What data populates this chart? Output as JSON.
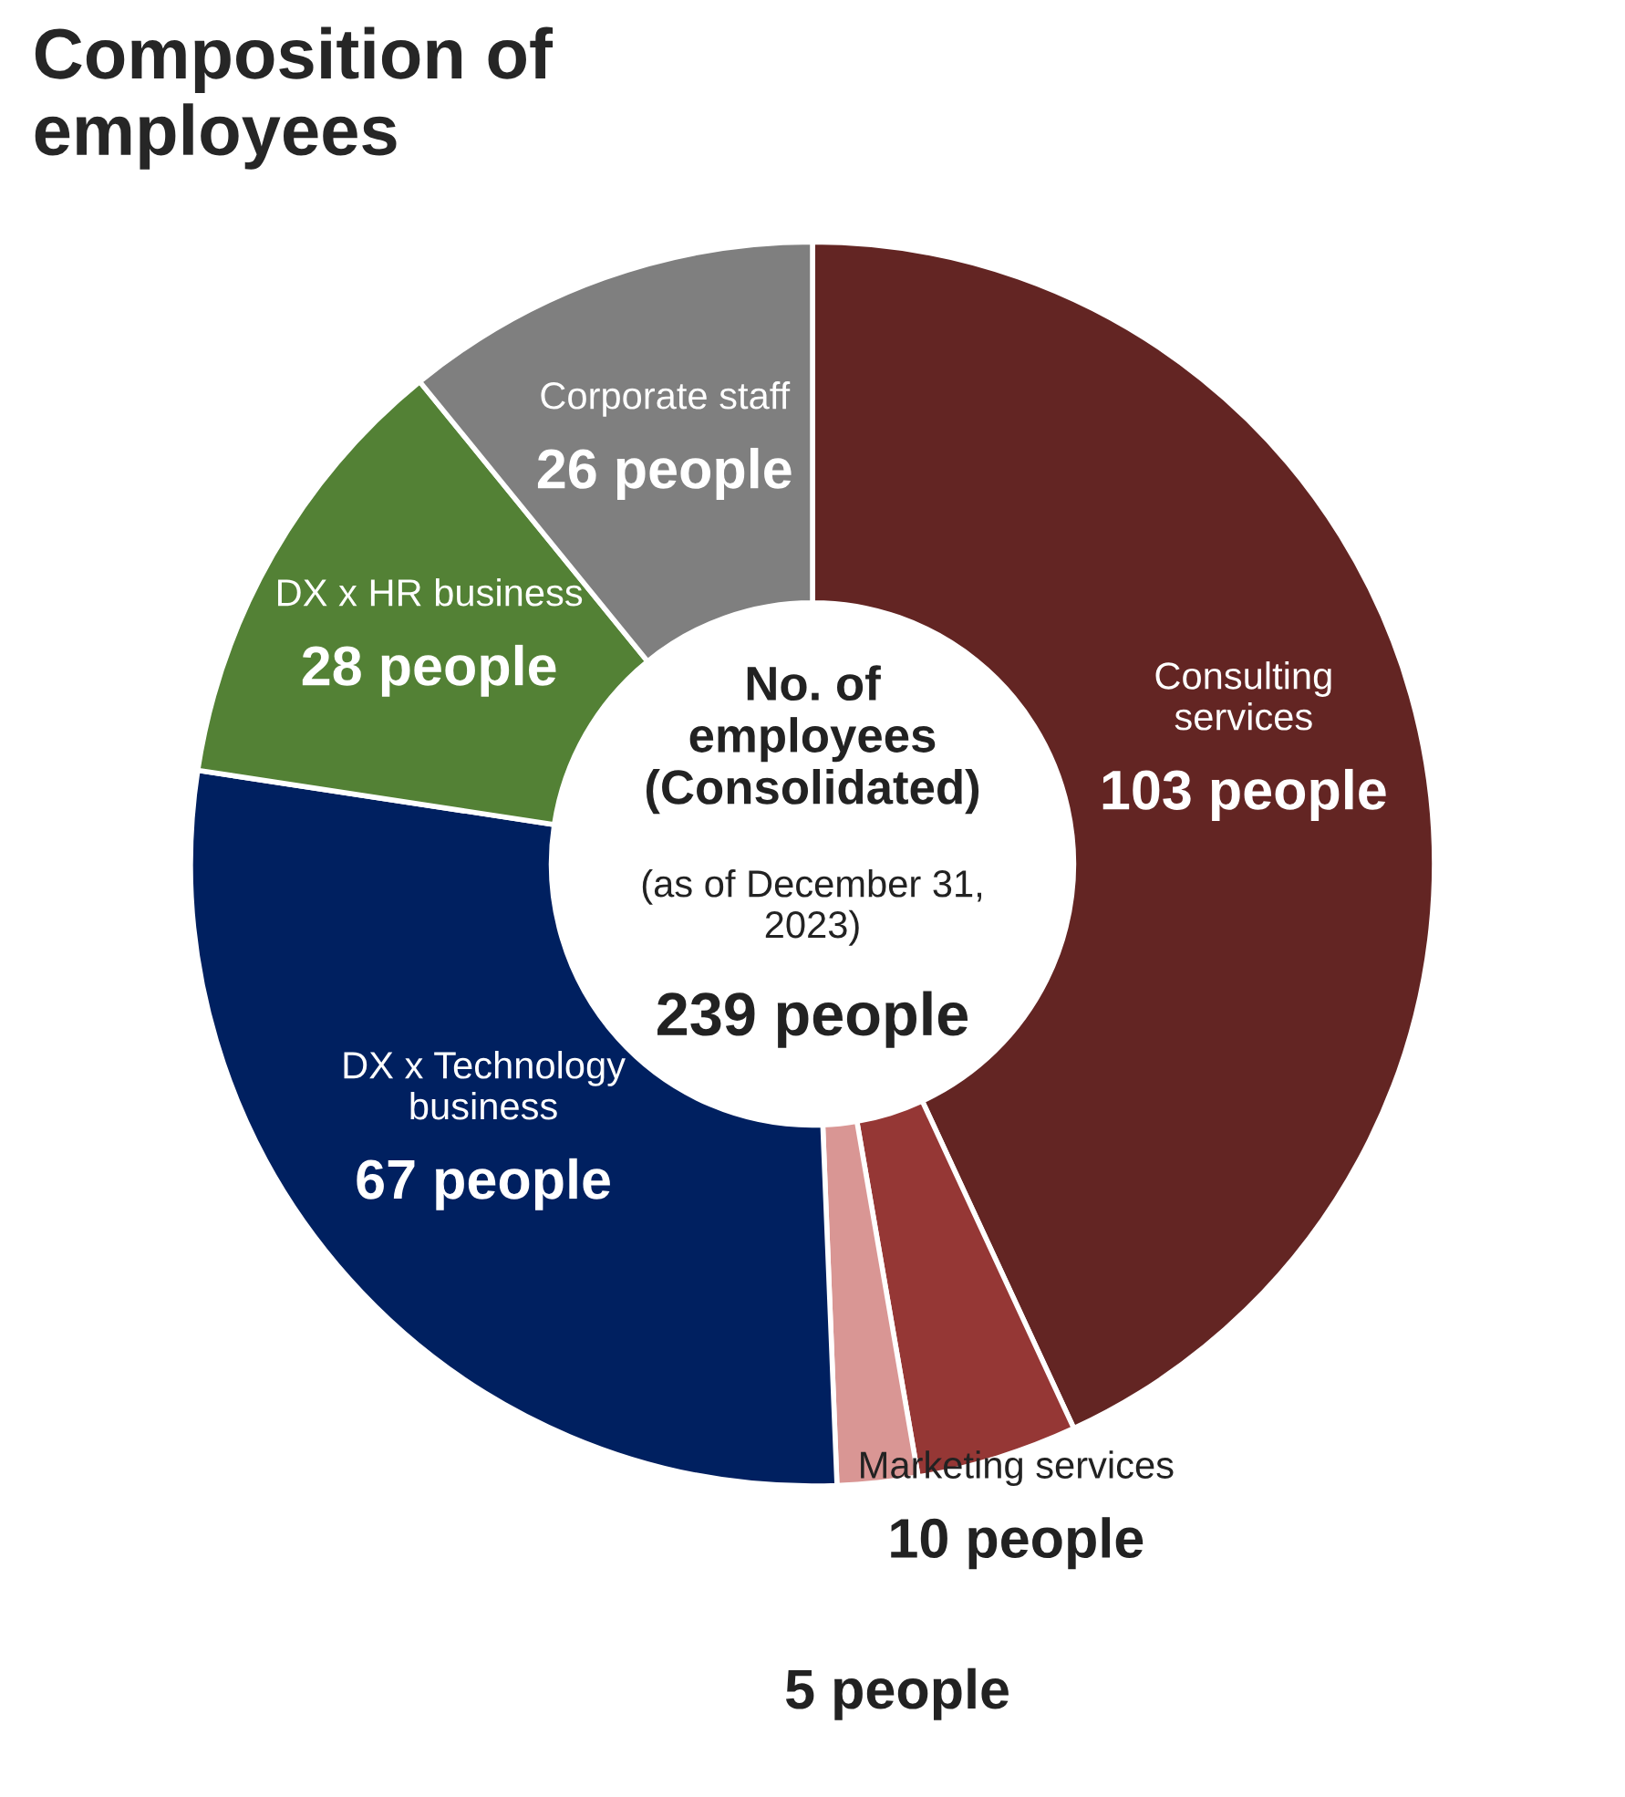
{
  "chart_data": {
    "type": "donut",
    "title": "Composition of\nemployees",
    "categories": [
      "Consulting\nservices",
      "Marketing services",
      null,
      "DX x Technology\nbusiness",
      "DX x HR business",
      "Corporate staff"
    ],
    "values": [
      103,
      10,
      5,
      67,
      28,
      26
    ],
    "colors": [
      "#632523",
      "#953735",
      "#d99694",
      "#002060",
      "#538135",
      "#7f7f7f"
    ],
    "value_labels": [
      "103 people",
      "10 people",
      "5 people",
      "67 people",
      "28 people",
      "26 people"
    ],
    "annotations": [
      "No. of\nemployees\n(Consolidated)",
      "(as of December 31,\n2023)",
      "239 people"
    ],
    "legend": false
  }
}
